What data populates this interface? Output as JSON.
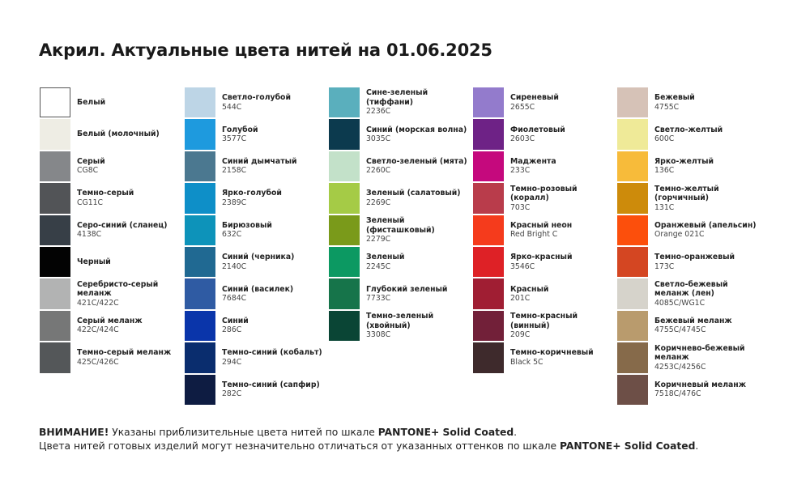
{
  "title": "Акрил. Актуальные цвета нитей на 01.06.2025",
  "columns": [
    [
      {
        "name": "Белый",
        "code": "",
        "color": "#ffffff"
      },
      {
        "name": "Белый (молочный)",
        "code": "",
        "color": "#eeede4"
      },
      {
        "name": "Серый",
        "code": "CG8C",
        "color": "#85878a"
      },
      {
        "name": "Темно-серый",
        "code": "CG11C",
        "color": "#525457"
      },
      {
        "name": "Серо-синий (сланец)",
        "code": "4138C",
        "color": "#373f47"
      },
      {
        "name": "Черный",
        "code": "",
        "color": "#030303"
      },
      {
        "name": "Серебристо-серый меланж",
        "code": "421C/422C",
        "color": "#b2b3b3"
      },
      {
        "name": "Серый меланж",
        "code": "422C/424C",
        "color": "#767777"
      },
      {
        "name": "Темно-серый меланж",
        "code": "425C/426C",
        "color": "#545759"
      }
    ],
    [
      {
        "name": "Светло-голубой",
        "code": "544C",
        "color": "#bdd5e6"
      },
      {
        "name": "Голубой",
        "code": "3577C",
        "color": "#1e9ade"
      },
      {
        "name": "Синий дымчатый",
        "code": "2158C",
        "color": "#4b7890"
      },
      {
        "name": "Ярко-голубой",
        "code": "2389C",
        "color": "#0e8fc8"
      },
      {
        "name": "Бирюзовый",
        "code": "632C",
        "color": "#0d93ba"
      },
      {
        "name": "Синий (черника)",
        "code": "2140C",
        "color": "#206992"
      },
      {
        "name": "Синий (василек)",
        "code": "7684C",
        "color": "#2f5ba3"
      },
      {
        "name": "Синий",
        "code": "286C",
        "color": "#0a35aa"
      },
      {
        "name": "Темно-синий (кобальт)",
        "code": "294C",
        "color": "#0a2d6e"
      },
      {
        "name": "Темно-синий (сапфир)",
        "code": "282C",
        "color": "#0e1c42"
      }
    ],
    [
      {
        "name": "Сине-зеленый (тиффани)",
        "code": "2236C",
        "color": "#5aafbd"
      },
      {
        "name": "Синий (морская волна)",
        "code": "3035C",
        "color": "#0c3a4e"
      },
      {
        "name": "Светло-зеленый (мята)",
        "code": "2260C",
        "color": "#c3e1c9"
      },
      {
        "name": "Зеленый (салатовый)",
        "code": "2269C",
        "color": "#a5cb46"
      },
      {
        "name": "Зеленый (фисташковый)",
        "code": "2279C",
        "color": "#7a9a1a"
      },
      {
        "name": "Зеленый",
        "code": "2245C",
        "color": "#0c9962"
      },
      {
        "name": "Глубокий зеленый",
        "code": "7733C",
        "color": "#16744a"
      },
      {
        "name": "Темно-зеленый (хвойный)",
        "code": "3308C",
        "color": "#0a4535"
      }
    ],
    [
      {
        "name": "Сиреневый",
        "code": "2655C",
        "color": "#937bcc"
      },
      {
        "name": "Фиолетовый",
        "code": "2603C",
        "color": "#6e2286"
      },
      {
        "name": "Маджента",
        "code": "233C",
        "color": "#c5097d"
      },
      {
        "name": "Темно-розовый (коралл)",
        "code": "703C",
        "color": "#b93c4b"
      },
      {
        "name": "Красный неон",
        "code": "Red Bright C",
        "color": "#f53b1c"
      },
      {
        "name": "Ярко-красный",
        "code": "3546C",
        "color": "#de2126"
      },
      {
        "name": "Красный",
        "code": "201C",
        "color": "#a01e33"
      },
      {
        "name": "Темно-красный (винный)",
        "code": "209C",
        "color": "#722039"
      },
      {
        "name": "Темно-коричневый",
        "code": "Black 5C",
        "color": "#3e2a2c"
      }
    ],
    [
      {
        "name": "Бежевый",
        "code": "4755C",
        "color": "#d6c2b7"
      },
      {
        "name": "Светло-желтый",
        "code": "600C",
        "color": "#efea98"
      },
      {
        "name": "Ярко-желтый",
        "code": "136C",
        "color": "#f7bb3a"
      },
      {
        "name": "Темно-желтый (горчичный)",
        "code": "131C",
        "color": "#cd8b0b"
      },
      {
        "name": "Оранжевый (апельсин)",
        "code": "Orange 021C",
        "color": "#fc4f0c"
      },
      {
        "name": "Темно-оранжевый",
        "code": "173C",
        "color": "#d44622"
      },
      {
        "name": "Светло-бежевый меланж (лен)",
        "code": "4085C/WG1C",
        "color": "#d6d3cb"
      },
      {
        "name": "Бежевый меланж",
        "code": "4755C/4745C",
        "color": "#b99b6d"
      },
      {
        "name": "Коричнево-бежевый меланж",
        "code": "4253C/4256C",
        "color": "#866a4a"
      },
      {
        "name": "Коричневый меланж",
        "code": "7518C/476C",
        "color": "#6d4f47"
      }
    ]
  ],
  "footer": {
    "warning_label": "ВНИМАНИЕ!",
    "line1_text": " Указаны приблизительные цвета нитей по шкале ",
    "line1_scale": "PANTONE+ Solid Coated",
    "line1_end": ".",
    "line2_text": "Цвета нитей готовых изделий могут незначительно отличаться от указанных оттенков по шкале ",
    "line2_scale": "PANTONE+ Solid Coated",
    "line2_end": "."
  }
}
